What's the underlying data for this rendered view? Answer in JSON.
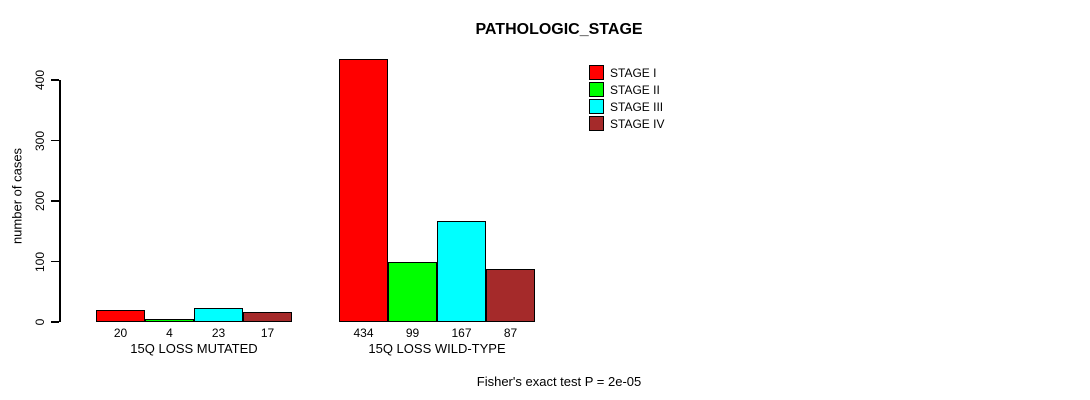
{
  "chart_data": {
    "type": "bar",
    "title": "PATHOLOGIC_STAGE",
    "xlabel": "",
    "ylabel": "number of cases",
    "ylim": [
      0,
      434
    ],
    "yticks": [
      0,
      100,
      200,
      300,
      400
    ],
    "grid": false,
    "legend_position": "top-right",
    "categories": [
      "15Q LOSS MUTATED",
      "15Q LOSS WILD-TYPE"
    ],
    "series": [
      {
        "name": "STAGE I",
        "color": "#FF0000",
        "values": [
          20,
          434
        ]
      },
      {
        "name": "STAGE II",
        "color": "#00FF00",
        "values": [
          4,
          99
        ]
      },
      {
        "name": "STAGE III",
        "color": "#00FFFF",
        "values": [
          23,
          167
        ]
      },
      {
        "name": "STAGE IV",
        "color": "#A52A2A",
        "values": [
          17,
          87
        ]
      }
    ],
    "bar_border_color": "#000000",
    "annotation": "Fisher's exact test P = 2e-05"
  }
}
